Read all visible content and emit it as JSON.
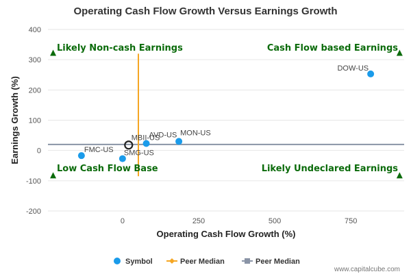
{
  "chart_data": {
    "type": "scatter",
    "title": "Operating Cash Flow Growth Versus Earnings Growth",
    "xlabel": "Operating Cash Flow Growth (%)",
    "ylabel": "Earnings Growth (%)",
    "xlim": [
      -245,
      925
    ],
    "ylim": [
      -200,
      400
    ],
    "x_ticks": [
      0,
      250,
      500,
      750
    ],
    "y_ticks": [
      -200,
      -100,
      0,
      100,
      200,
      300,
      400
    ],
    "grid": "horizontal",
    "series": [
      {
        "name": "Symbol",
        "color": "#1a9bea",
        "points": [
          {
            "label": "DOW-US",
            "x": 815,
            "y": 253
          },
          {
            "label": "MON-US",
            "x": 185,
            "y": 30
          },
          {
            "label": "AVD-US",
            "x": 78,
            "y": 23
          },
          {
            "label": "FMC-US",
            "x": -135,
            "y": -17
          },
          {
            "label": "SMG-US",
            "x": 0,
            "y": -27
          }
        ]
      }
    ],
    "highlight_point": {
      "label": "MBII-US",
      "x": 20,
      "y": 18,
      "color": "#222222"
    },
    "peer_median": {
      "x": 52,
      "y": 20,
      "x_color": "#f5a623",
      "y_color": "#8a94a6",
      "x_line_range": [
        -85,
        320
      ]
    },
    "quadrant_labels": [
      {
        "text": "Likely Non-cash Earnings",
        "position": "top-left"
      },
      {
        "text": "Cash Flow based Earnings",
        "position": "top-right"
      },
      {
        "text": "Low Cash Flow Base",
        "position": "bottom-left"
      },
      {
        "text": "Likely Undeclared Earnings",
        "position": "bottom-right"
      }
    ],
    "quadrant_markers": [
      {
        "x": -228,
        "y": 322
      },
      {
        "x": 910,
        "y": 322
      },
      {
        "x": -228,
        "y": -83
      },
      {
        "x": 910,
        "y": -83
      }
    ],
    "marker_color": "#0b6b0b",
    "legend": {
      "position": "bottom-center",
      "items": [
        {
          "label": "Symbol",
          "shape": "circle",
          "color": "#1a9bea"
        },
        {
          "label": "Peer Median",
          "shape": "diamond-line",
          "color": "#f5a623"
        },
        {
          "label": "Peer Median",
          "shape": "square-line",
          "color": "#8a94a6"
        }
      ]
    },
    "credit": "www.capitalcube.com"
  }
}
